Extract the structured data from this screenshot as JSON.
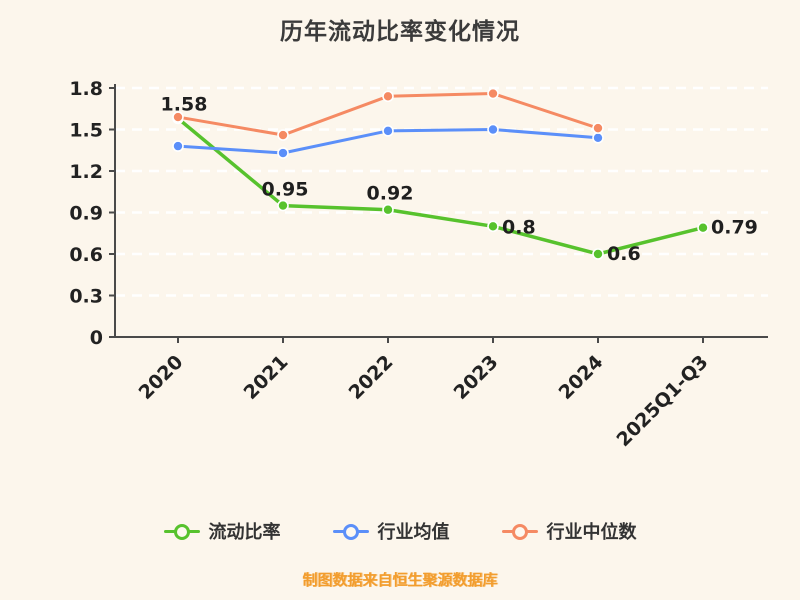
{
  "page": {
    "background": "#fcf6ec"
  },
  "chart_data": {
    "type": "line",
    "title": "历年流动比率变化情况",
    "categories": [
      "2020",
      "2021",
      "2022",
      "2023",
      "2024",
      "2025Q1-Q3"
    ],
    "series": [
      {
        "name": "流动比率",
        "color": "#57c22d",
        "values": [
          1.58,
          0.95,
          0.92,
          0.8,
          0.6,
          0.79
        ],
        "labels": [
          "1.58",
          "0.95",
          "0.92",
          "0.8",
          "0.6",
          "0.79"
        ]
      },
      {
        "name": "行业均值",
        "color": "#5b8ff9",
        "values": [
          1.38,
          1.33,
          1.49,
          1.5,
          1.44,
          null
        ]
      },
      {
        "name": "行业中位数",
        "color": "#f58a63",
        "values": [
          1.59,
          1.46,
          1.74,
          1.76,
          1.51,
          null
        ]
      }
    ],
    "ylim": [
      0,
      1.8
    ],
    "yticks": [
      0,
      0.3,
      0.6,
      0.9,
      1.2,
      1.5,
      1.8
    ],
    "grid": "dashed-white-horizontal",
    "legend_position": "bottom",
    "xlabel": "",
    "ylabel": ""
  },
  "footer": {
    "source_text": "制图数据来自恒生聚源数据库"
  }
}
